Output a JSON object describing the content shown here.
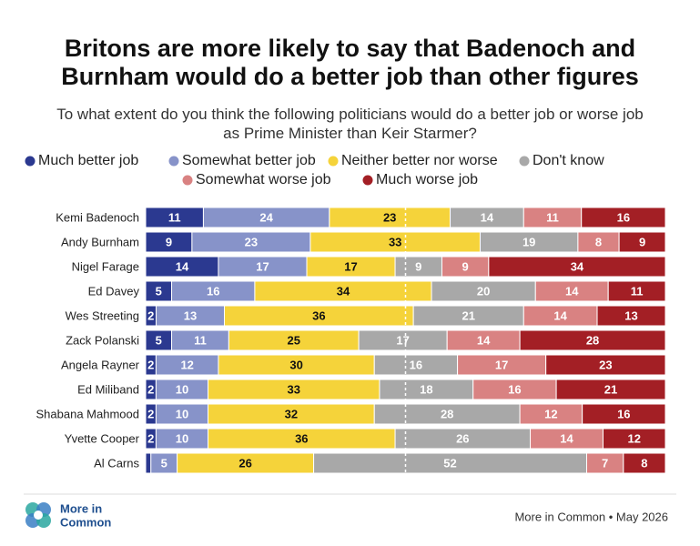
{
  "chart_data": {
    "type": "stacked-barh",
    "title": "Britons are more likely to say that Badenoch and Burnham would do a better job than other figures",
    "subtitle": "To what extent do you think the following politicians would do a better job or worse job as Prime Minister than Keir Starmer?",
    "categories": [
      "Kemi Badenoch",
      "Andy Burnham",
      "Nigel Farage",
      "Ed Davey",
      "Wes Streeting",
      "Zack Polanski",
      "Angela Rayner",
      "Ed Miliband",
      "Shabana Mahmood",
      "Yvette Cooper",
      "Al Carns"
    ],
    "series": [
      {
        "name": "Much better job",
        "color": "#2b3990",
        "label_color": "#ffffff",
        "values": [
          11,
          9,
          14,
          5,
          2,
          5,
          2,
          2,
          2,
          2,
          1
        ]
      },
      {
        "name": "Somewhat better job",
        "color": "#8793c9",
        "label_color": "#ffffff",
        "values": [
          24,
          23,
          17,
          16,
          13,
          11,
          12,
          10,
          10,
          10,
          5
        ]
      },
      {
        "name": "Neither better nor worse",
        "color": "#f5d33a",
        "label_color": "#111111",
        "values": [
          23,
          33,
          17,
          34,
          36,
          25,
          30,
          33,
          32,
          36,
          26
        ]
      },
      {
        "name": "Don't know",
        "color": "#a8a8a8",
        "label_color": "#ffffff",
        "values": [
          14,
          19,
          9,
          20,
          21,
          17,
          16,
          18,
          28,
          26,
          52
        ]
      },
      {
        "name": "Somewhat worse job",
        "color": "#d98282",
        "label_color": "#ffffff",
        "values": [
          11,
          8,
          9,
          14,
          14,
          14,
          17,
          16,
          12,
          14,
          7
        ]
      },
      {
        "name": "Much worse job",
        "color": "#a31f25",
        "label_color": "#ffffff",
        "values": [
          16,
          9,
          34,
          11,
          13,
          28,
          23,
          21,
          16,
          12,
          8
        ]
      }
    ]
  },
  "footer": {
    "logo_lines": [
      "More in",
      "Common"
    ],
    "source": "More in Common • May 2026"
  }
}
